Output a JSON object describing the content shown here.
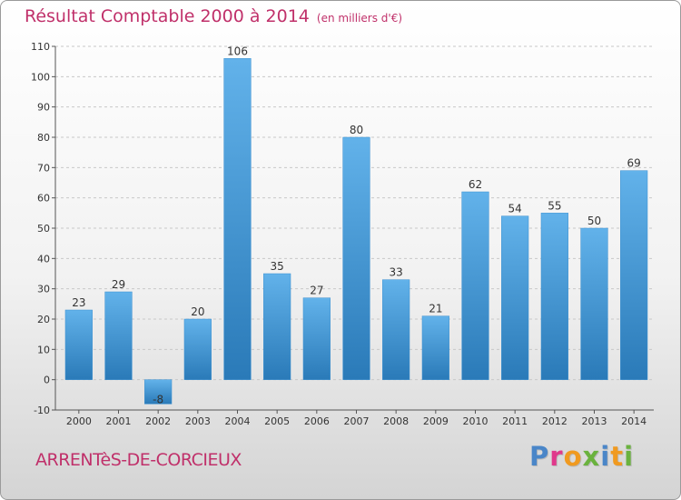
{
  "header": {
    "title": "Résultat Comptable 2000 à 2014",
    "unit": "(en milliers d'€)"
  },
  "footer": {
    "commune": "ARRENTèS-DE-CORCIEUX",
    "logo_letters": [
      "P",
      "r",
      "o",
      "x",
      "i",
      "t",
      "i"
    ],
    "logo_colors": [
      "#4a86c8",
      "#e0398b",
      "#f09a20",
      "#6ab23e",
      "#4a86c8",
      "#f09a20",
      "#6ab23e"
    ]
  },
  "colors": {
    "title": "#c0306a",
    "bar_light": "#62b2ea",
    "bar_dark": "#2a7ab8",
    "grid": "#c8c8c8"
  },
  "chart_data": {
    "type": "bar",
    "title": "Résultat Comptable 2000 à 2014",
    "subtitle": "(en milliers d'€)",
    "xlabel": "",
    "ylabel": "",
    "ylim": [
      -10,
      110
    ],
    "yticks": [
      -10,
      0,
      10,
      20,
      30,
      40,
      50,
      60,
      70,
      80,
      90,
      100,
      110
    ],
    "grid": true,
    "categories": [
      "2000",
      "2001",
      "2002",
      "2003",
      "2004",
      "2005",
      "2006",
      "2007",
      "2008",
      "2009",
      "2010",
      "2011",
      "2012",
      "2013",
      "2014"
    ],
    "values": [
      23,
      29,
      -8,
      20,
      106,
      35,
      27,
      80,
      33,
      21,
      62,
      54,
      55,
      50,
      69
    ]
  }
}
